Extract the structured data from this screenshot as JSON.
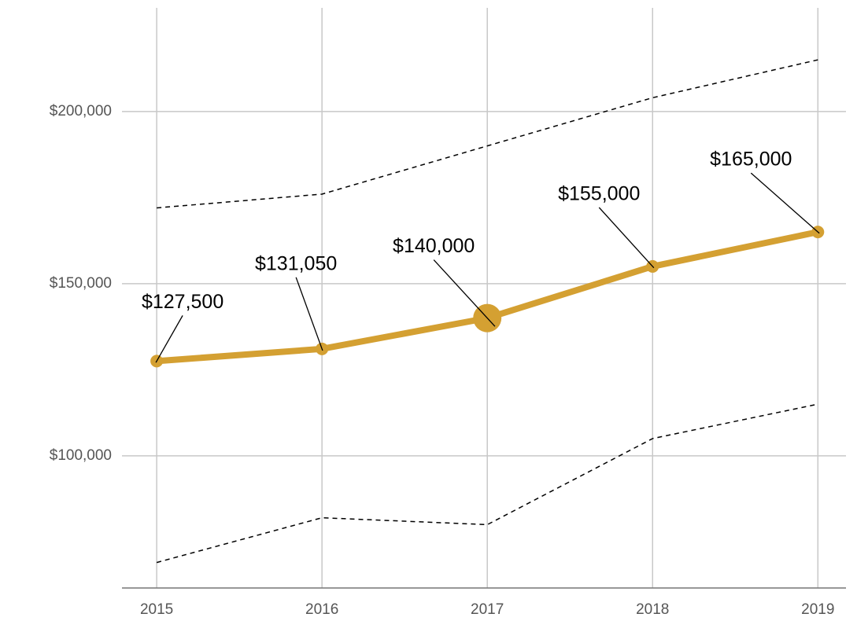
{
  "chart_data": {
    "type": "line",
    "x": [
      2015,
      2016,
      2017,
      2018,
      2019
    ],
    "series": [
      {
        "color": "#d4a032",
        "values": [
          127500,
          131050,
          140000,
          155000,
          165000
        ],
        "value_labels": [
          "$127,500",
          "$131,050",
          "$140,000",
          "$155,000",
          "$165,000"
        ]
      },
      {
        "color": "#000000",
        "dash": true,
        "values": [
          172000,
          176000,
          190000,
          204000,
          215000
        ]
      },
      {
        "color": "#000000",
        "dash": true,
        "values": [
          69000,
          82000,
          80000,
          105000,
          115000
        ]
      }
    ],
    "highlight": 2017,
    "xlim": [
      2014.79,
      2019.17
    ],
    "xticks": [
      2015,
      2016,
      2017,
      2018,
      2019
    ],
    "ylim": [
      61600,
      230100
    ],
    "yticks": [
      {
        "value": 100000,
        "label": "$100,000"
      },
      {
        "value": 150000,
        "label": "$150,000"
      },
      {
        "value": 200000,
        "label": "$200,000"
      }
    ],
    "grid": true
  }
}
